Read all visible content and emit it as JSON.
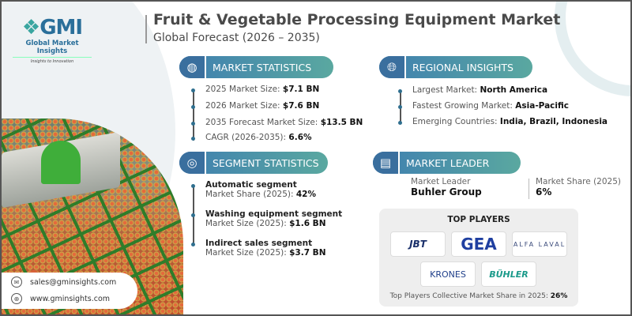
{
  "logo": {
    "mark": "GMI",
    "name": "Global Market Insights",
    "tagline": "Insights to Innovation"
  },
  "header": {
    "title": "Fruit & Vegetable Processing Equipment Market",
    "subtitle": "Global Forecast (2026 – 2035)"
  },
  "market_statistics": {
    "label": "MARKET STATISTICS",
    "icon": "globe-chart-icon",
    "items": [
      {
        "label": "2025 Market Size: ",
        "value": "$7.1 BN"
      },
      {
        "label": "2026 Market Size: ",
        "value": "$7.6 BN"
      },
      {
        "label": "2035 Forecast Market Size: ",
        "value": "$13.5 BN"
      },
      {
        "label": "CAGR (2026-2035): ",
        "value": "6.6%"
      }
    ]
  },
  "regional_insights": {
    "label": "REGIONAL INSIGHTS",
    "icon": "globe-icon",
    "items": [
      {
        "label": "Largest Market: ",
        "value": "North America"
      },
      {
        "label": "Fastest Growing Market: ",
        "value": "Asia-Pacific"
      },
      {
        "label": "Emerging Countries: ",
        "value": "India, Brazil, Indonesia"
      }
    ]
  },
  "segment_statistics": {
    "label": "SEGMENT STATISTICS",
    "icon": "target-chart-icon",
    "items": [
      {
        "name": "Automatic segment",
        "label": "Market Share (2025): ",
        "value": "42%"
      },
      {
        "name": "Washing equipment segment",
        "label": "Market Size (2025): ",
        "value": "$1.6 BN"
      },
      {
        "name": "Indirect sales segment",
        "label": "Market Size (2025): ",
        "value": "$3.7 BN"
      }
    ]
  },
  "market_leader": {
    "label": "MARKET LEADER",
    "icon": "leader-chart-icon",
    "leader_label": "Market Leader",
    "leader": "Buhler Group",
    "share_label": "Market Share (2025)",
    "share": "6%"
  },
  "top_players": {
    "title": "TOP PLAYERS",
    "logos": [
      "JBT",
      "GEA",
      "ALFA LAVAL",
      "KRONES",
      "BÜHLER"
    ],
    "footer_label": "Top Players Collective Market Share in 2025: ",
    "footer_value": "26%"
  },
  "contact": {
    "email": "sales@gminsights.com",
    "website": "www.gminsights.com"
  },
  "colors": {
    "accent": "#3f7fb0",
    "teal": "#5aa8a0"
  }
}
